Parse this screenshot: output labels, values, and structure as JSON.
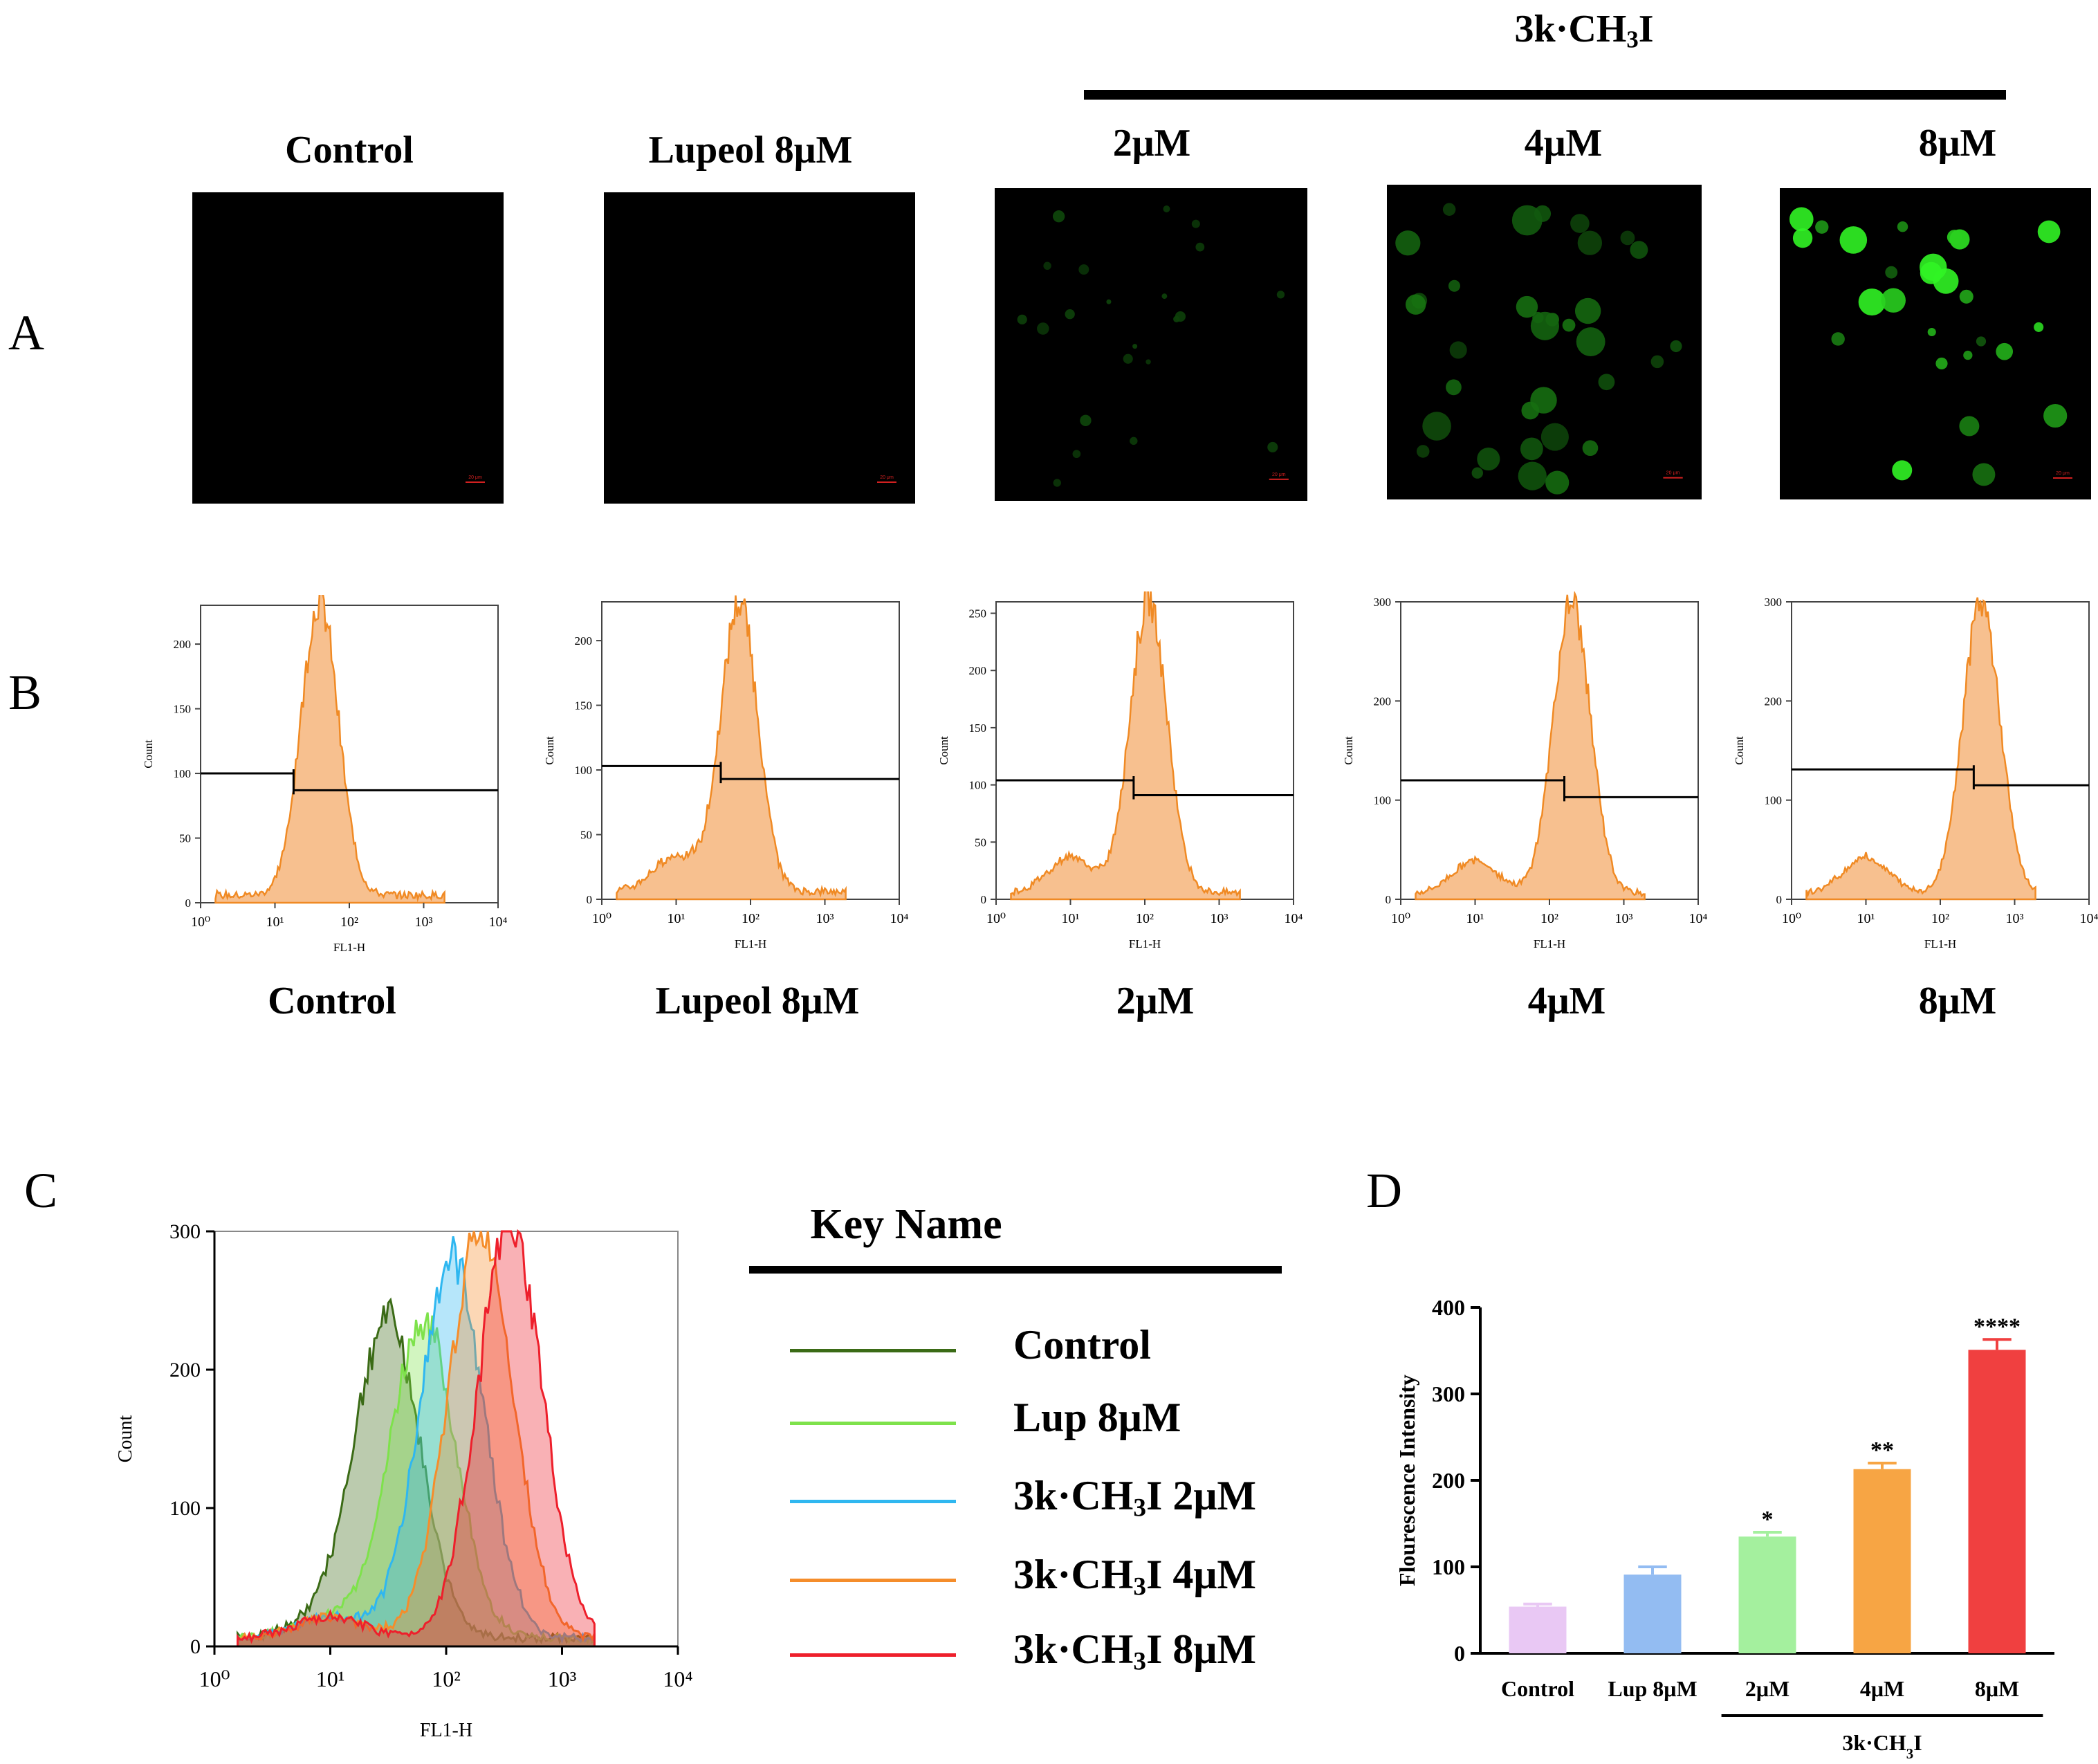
{
  "figure": {
    "panel_letters": [
      "A",
      "B",
      "C",
      "D"
    ],
    "compound_header": "3k·CH3I",
    "microscopy": {
      "labels": [
        "Control",
        "Lupeol 8μM",
        "2μM",
        "4μM",
        "8μM"
      ],
      "scale_bar_label": "20 μm",
      "intensity_levels": [
        0,
        0,
        0.15,
        0.35,
        0.9
      ]
    },
    "flow_histograms": {
      "labels": [
        "Control",
        "Lupeol 8μM",
        "2μM",
        "4μM",
        "8μM"
      ],
      "xlabel": "FL1-H",
      "ylabel": "Count",
      "x_ticks": [
        "10⁰",
        "10¹",
        "10²",
        "10³",
        "10⁴"
      ],
      "y_ticks": [
        [
          "0",
          "50",
          "100",
          "150",
          "200"
        ],
        [
          "0",
          "50",
          "100",
          "150",
          "200"
        ],
        [
          "0",
          "50",
          "100",
          "150",
          "200",
          "250"
        ],
        [
          "0",
          "100",
          "200",
          "300"
        ],
        [
          "0",
          "100",
          "200",
          "300"
        ]
      ],
      "ymax": [
        230,
        230,
        260,
        300,
        300
      ],
      "peak_log": [
        1.6,
        1.85,
        2.05,
        2.3,
        2.55
      ],
      "peak_count": [
        230,
        225,
        258,
        297,
        297
      ],
      "gate_log": [
        1.25,
        1.6,
        1.85,
        2.2,
        2.45
      ],
      "gate_left_y": [
        100,
        103,
        104,
        120,
        131
      ],
      "gate_right_y": [
        87,
        93,
        91,
        103,
        115
      ],
      "colors": {
        "fill": "#f7c08f",
        "line": "#f08a24",
        "gate": "#000000"
      }
    },
    "overlay": {
      "xlabel": "FL1-H",
      "ylabel": "Count",
      "x_ticks": [
        "10⁰",
        "10¹",
        "10²",
        "10³",
        "10⁴"
      ],
      "y_ticks": [
        "0",
        "100",
        "200",
        "300"
      ],
      "legend_title": "Key Name",
      "series": [
        {
          "name": "Control",
          "color": "#3b6b16",
          "peak_log": 1.5,
          "peak": 230
        },
        {
          "name": "Lup 8μM",
          "color": "#7ee24b",
          "peak_log": 1.8,
          "peak": 232
        },
        {
          "name": "3k·CH3I 2μM",
          "color": "#2fb7f0",
          "peak_log": 2.05,
          "peak": 277
        },
        {
          "name": "3k·CH3I 4μM",
          "color": "#f58d2b",
          "peak_log": 2.3,
          "peak": 300
        },
        {
          "name": "3k·CH3I 8μM",
          "color": "#ee1f2b",
          "peak_log": 2.55,
          "peak": 300
        }
      ]
    }
  },
  "chart_data": {
    "type": "bar",
    "title": "",
    "ylabel": "Flourescence Intensity",
    "xlabel": "",
    "ylim": [
      0,
      400
    ],
    "y_ticks": [
      0,
      100,
      200,
      300,
      400
    ],
    "categories": [
      "Control",
      "Lup 8μM",
      "2μM",
      "4μM",
      "8μM"
    ],
    "values": [
      54,
      91,
      135,
      213,
      351
    ],
    "errors": [
      3,
      9,
      5,
      7,
      12
    ],
    "significance": [
      "",
      "",
      "*",
      "**",
      "****"
    ],
    "colors": [
      "#e9c8f4",
      "#93bcf2",
      "#a4f09e",
      "#f7a544",
      "#f04040"
    ],
    "group_label": "3k·CH3I"
  }
}
